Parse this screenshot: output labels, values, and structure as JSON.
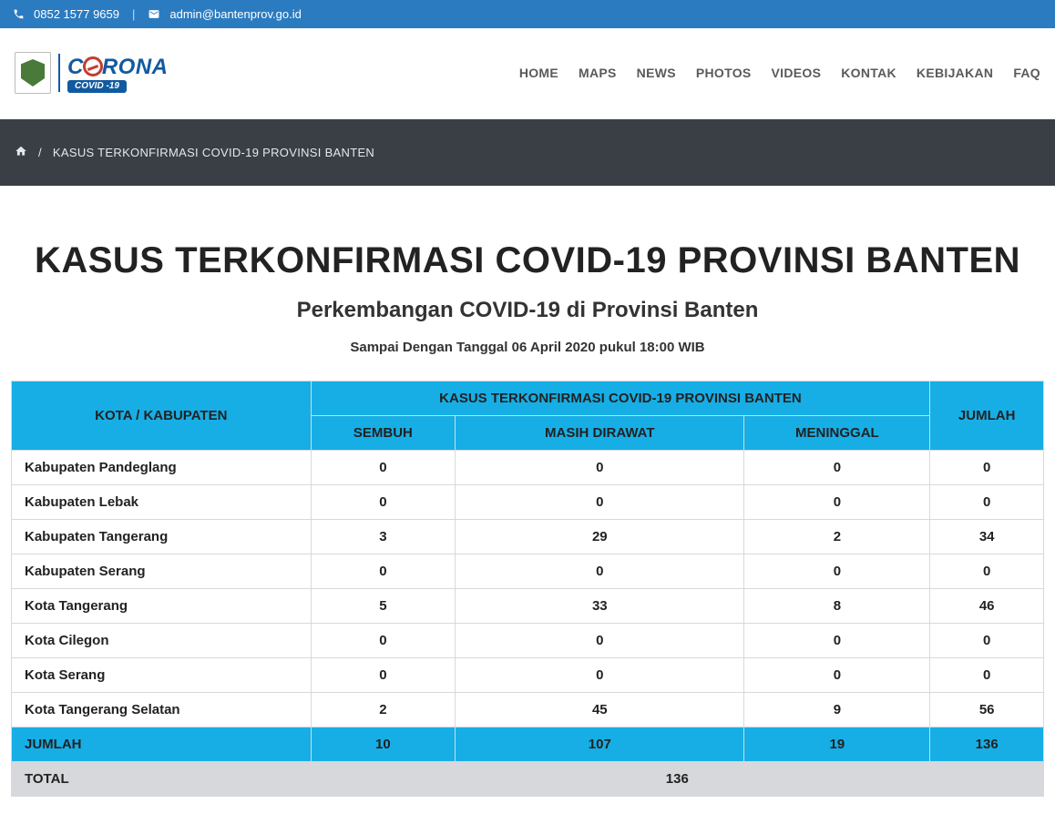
{
  "colors": {
    "topbar_bg": "#2b7bc1",
    "breadcrumb_bg": "#3a3f45",
    "table_header_bg": "#17aee5",
    "total_row_bg": "#d6d8db",
    "logo_primary": "#125aa0",
    "logo_accent": "#c63c2f"
  },
  "topbar": {
    "phone": "0852 1577 9659",
    "separator": "|",
    "email": "admin@bantenprov.go.id"
  },
  "logo": {
    "line1_pre": "C",
    "line1_post": "RONA",
    "badge": "COVID -19"
  },
  "nav": [
    "HOME",
    "MAPS",
    "NEWS",
    "PHOTOS",
    "VIDEOS",
    "KONTAK",
    "KEBIJAKAN",
    "FAQ"
  ],
  "breadcrumb": {
    "separator": "/",
    "title": "KASUS TERKONFIRMASI COVID-19 PROVINSI BANTEN"
  },
  "headline": "KASUS TERKONFIRMASI COVID-19 PROVINSI BANTEN",
  "subhead": "Perkembangan COVID-19 di Provinsi Banten",
  "asof": "Sampai Dengan Tanggal 06 April 2020 pukul 18:00 WIB",
  "table": {
    "col_region": "KOTA / KABUPATEN",
    "group_header": "KASUS TERKONFIRMASI COVID-19 PROVINSI BANTEN",
    "col_sembuh": "SEMBUH",
    "col_dirawat": "MASIH DIRAWAT",
    "col_meninggal": "MENINGGAL",
    "col_jumlah": "JUMLAH",
    "rows": [
      {
        "region": "Kabupaten Pandeglang",
        "sembuh": "0",
        "dirawat": "0",
        "meninggal": "0",
        "jumlah": "0"
      },
      {
        "region": "Kabupaten Lebak",
        "sembuh": "0",
        "dirawat": "0",
        "meninggal": "0",
        "jumlah": "0"
      },
      {
        "region": "Kabupaten Tangerang",
        "sembuh": "3",
        "dirawat": "29",
        "meninggal": "2",
        "jumlah": "34"
      },
      {
        "region": "Kabupaten Serang",
        "sembuh": "0",
        "dirawat": "0",
        "meninggal": "0",
        "jumlah": "0"
      },
      {
        "region": "Kota Tangerang",
        "sembuh": "5",
        "dirawat": "33",
        "meninggal": "8",
        "jumlah": "46"
      },
      {
        "region": "Kota Cilegon",
        "sembuh": "0",
        "dirawat": "0",
        "meninggal": "0",
        "jumlah": "0"
      },
      {
        "region": "Kota Serang",
        "sembuh": "0",
        "dirawat": "0",
        "meninggal": "0",
        "jumlah": "0"
      },
      {
        "region": "Kota Tangerang Selatan",
        "sembuh": "2",
        "dirawat": "45",
        "meninggal": "9",
        "jumlah": "56"
      }
    ],
    "sum_label": "JUMLAH",
    "sum": {
      "sembuh": "10",
      "dirawat": "107",
      "meninggal": "19",
      "jumlah": "136"
    },
    "total_label": "TOTAL",
    "total_value": "136"
  }
}
